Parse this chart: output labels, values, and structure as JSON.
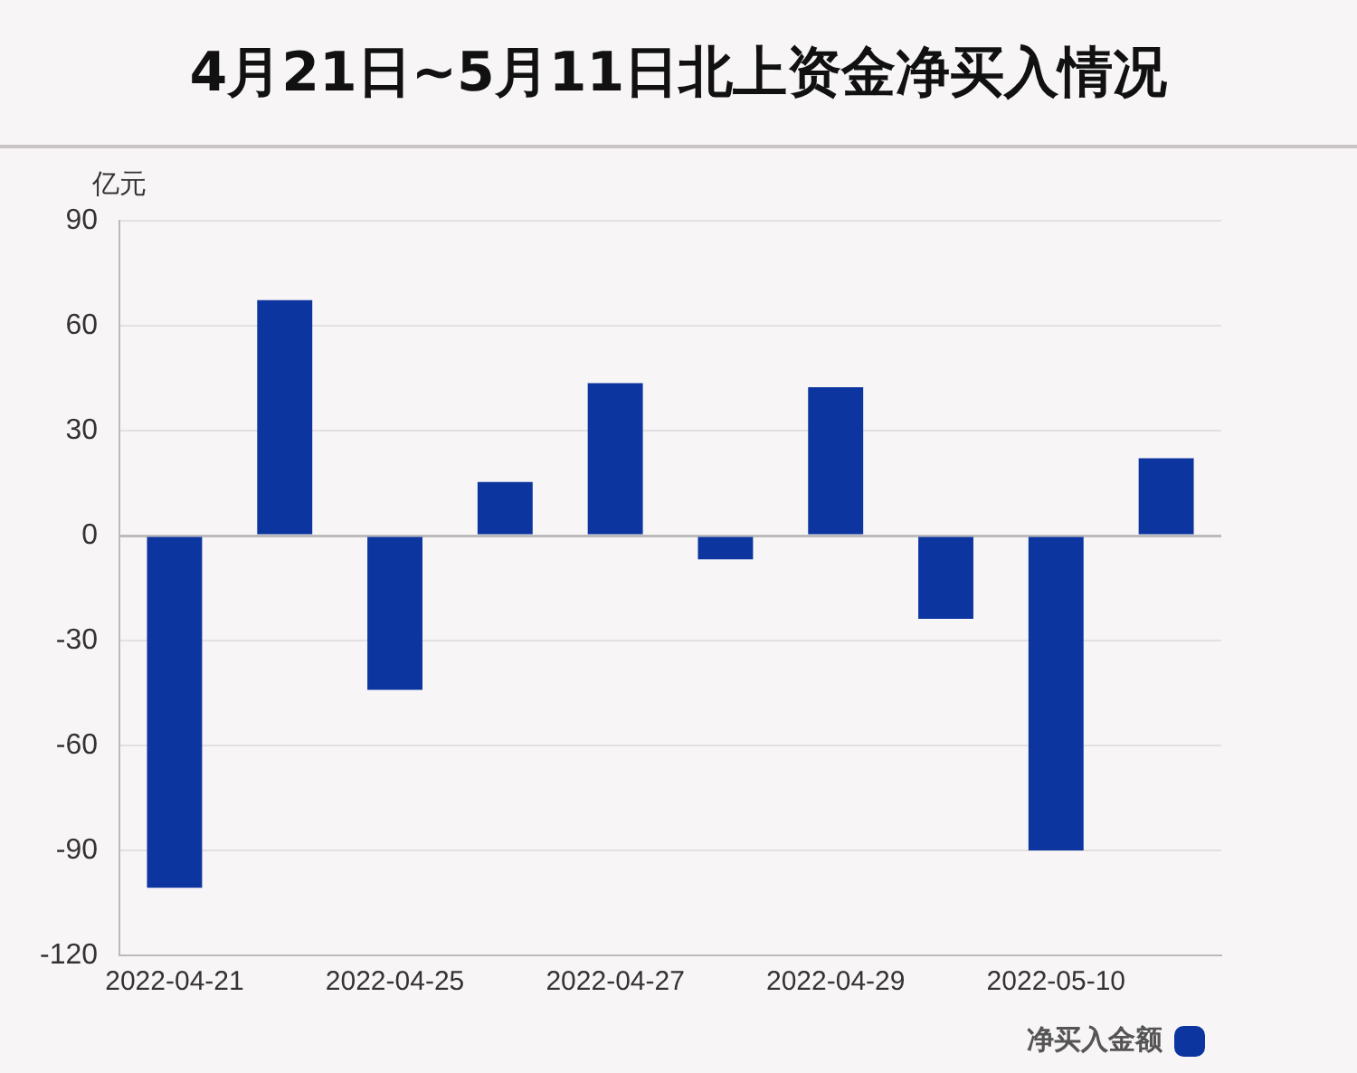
{
  "chart_data": {
    "type": "bar",
    "title": "4月21日~5月11日北上资金净买入情况",
    "ylabel": "亿元",
    "categories": [
      "2022-04-21",
      null,
      "2022-04-25",
      null,
      "2022-04-27",
      null,
      "2022-04-29",
      null,
      "2022-05-10",
      null
    ],
    "series": [
      {
        "name": "净买入金额",
        "color": "#0c35a0",
        "values": [
          -100.7,
          67.3,
          -44.1,
          15.3,
          43.6,
          -6.8,
          42.4,
          -23.8,
          -90,
          22.1
        ]
      }
    ],
    "ylim": [
      -120,
      90
    ],
    "yticks": [
      -120,
      -90,
      -60,
      -30,
      0,
      30,
      60,
      90
    ],
    "grid": "y",
    "legend": "bottom right"
  }
}
